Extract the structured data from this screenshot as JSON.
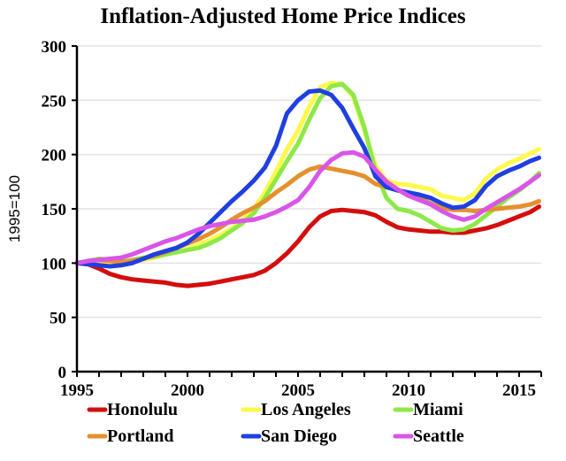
{
  "chart_data": {
    "type": "line",
    "title": "Inflation-Adjusted Home Price Indices",
    "xlabel": "",
    "ylabel": "1995=100",
    "xlim": [
      1995,
      2016
    ],
    "ylim": [
      0,
      300
    ],
    "x_ticks": [
      1995,
      2000,
      2005,
      2010,
      2015
    ],
    "y_ticks": [
      0,
      50,
      100,
      150,
      200,
      250,
      300
    ],
    "grid": "horizontal",
    "legend_position": "bottom",
    "x": [
      1995,
      1995.5,
      1996,
      1996.5,
      1997,
      1997.5,
      1998,
      1998.5,
      1999,
      1999.5,
      2000,
      2000.5,
      2001,
      2001.5,
      2002,
      2002.5,
      2003,
      2003.5,
      2004,
      2004.5,
      2005,
      2005.5,
      2006,
      2006.5,
      2007,
      2007.5,
      2008,
      2008.5,
      2009,
      2009.5,
      2010,
      2010.5,
      2011,
      2011.5,
      2012,
      2012.5,
      2013,
      2013.5,
      2014,
      2014.5,
      2015,
      2015.5,
      2015.9
    ],
    "series": [
      {
        "name": "Honolulu",
        "color": "#d40d0d",
        "values": [
          100,
          99,
          95,
          90,
          87,
          85,
          84,
          83,
          82,
          80,
          79,
          80,
          81,
          83,
          85,
          87,
          89,
          93,
          100,
          109,
          120,
          133,
          143,
          148,
          149,
          148,
          147,
          144,
          138,
          133,
          131,
          130,
          129,
          129,
          128,
          128,
          130,
          132,
          135,
          139,
          143,
          147,
          152
        ]
      },
      {
        "name": "Los Angeles",
        "color": "#fdf94a",
        "values": [
          100,
          101,
          102,
          101,
          100,
          101,
          103,
          105,
          108,
          110,
          113,
          117,
          121,
          126,
          132,
          140,
          150,
          165,
          184,
          205,
          222,
          244,
          262,
          266,
          265,
          253,
          222,
          190,
          176,
          173,
          172,
          170,
          168,
          162,
          160,
          158,
          164,
          178,
          186,
          192,
          196,
          201,
          205
        ]
      },
      {
        "name": "Miami",
        "color": "#8ee84a",
        "values": [
          100,
          102,
          104,
          103,
          101,
          103,
          105,
          106,
          108,
          110,
          112,
          114,
          118,
          123,
          130,
          137,
          146,
          160,
          177,
          194,
          210,
          232,
          252,
          263,
          265,
          255,
          225,
          185,
          160,
          150,
          148,
          144,
          138,
          132,
          130,
          131,
          136,
          144,
          152,
          160,
          167,
          175,
          183
        ]
      },
      {
        "name": "Portland",
        "color": "#e5902f",
        "values": [
          100,
          101,
          103,
          102,
          101,
          102,
          104,
          107,
          110,
          114,
          118,
          122,
          127,
          133,
          140,
          146,
          151,
          157,
          165,
          172,
          180,
          186,
          189,
          187,
          185,
          183,
          180,
          173,
          170,
          167,
          164,
          160,
          155,
          151,
          149,
          149,
          148,
          149,
          150,
          151,
          152,
          154,
          157
        ]
      },
      {
        "name": "San Diego",
        "color": "#1f3fe0",
        "values": [
          100,
          99,
          98,
          97,
          98,
          100,
          104,
          108,
          111,
          114,
          119,
          127,
          137,
          147,
          157,
          166,
          176,
          188,
          208,
          238,
          250,
          258,
          259,
          255,
          243,
          224,
          206,
          180,
          170,
          167,
          165,
          163,
          160,
          155,
          151,
          152,
          158,
          171,
          180,
          185,
          189,
          194,
          197
        ]
      },
      {
        "name": "Seattle",
        "color": "#d955e8",
        "values": [
          100,
          102,
          103,
          104,
          105,
          108,
          112,
          116,
          120,
          123,
          127,
          131,
          134,
          136,
          138,
          139,
          140,
          143,
          147,
          152,
          158,
          170,
          185,
          195,
          201,
          202,
          198,
          186,
          175,
          168,
          162,
          158,
          154,
          148,
          143,
          140,
          143,
          150,
          156,
          162,
          168,
          175,
          181
        ]
      }
    ]
  }
}
